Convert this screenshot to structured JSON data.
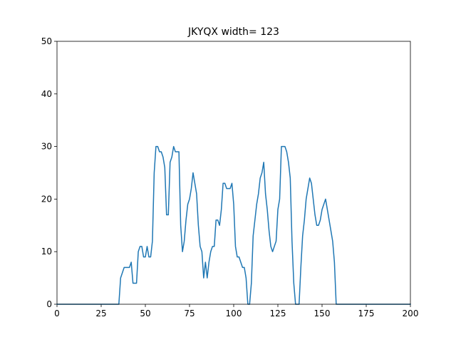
{
  "chart_data": {
    "type": "line",
    "title": "JKYQX width= 123",
    "xlabel": "",
    "ylabel": "",
    "xlim": [
      0,
      200
    ],
    "ylim": [
      0,
      50
    ],
    "xticks": [
      0,
      25,
      50,
      75,
      100,
      125,
      150,
      175,
      200
    ],
    "yticks": [
      0,
      10,
      20,
      30,
      40,
      50
    ],
    "grid": false,
    "line_color": "#1f77b4",
    "series": [
      {
        "x": [
          0,
          35,
          36,
          37,
          38,
          39,
          40,
          41,
          42,
          43,
          44,
          45,
          46,
          47,
          48,
          49,
          50,
          51,
          52,
          53,
          54,
          55,
          56,
          57,
          58,
          59,
          60,
          61,
          62,
          63,
          64,
          65,
          66,
          67,
          68,
          69,
          70,
          71,
          72,
          73,
          74,
          75,
          76,
          77,
          78,
          79,
          80,
          81,
          82,
          83,
          84,
          85,
          86,
          87,
          88,
          89,
          90,
          91,
          92,
          93,
          94,
          95,
          96,
          97,
          98,
          99,
          100,
          101,
          102,
          103,
          104,
          105,
          106,
          107,
          108,
          109,
          110,
          111,
          112,
          113,
          114,
          115,
          116,
          117,
          118,
          119,
          120,
          121,
          122,
          123,
          124,
          125,
          126,
          127,
          128,
          129,
          130,
          131,
          132,
          133,
          134,
          135,
          136,
          137,
          138,
          139,
          140,
          141,
          142,
          143,
          144,
          145,
          146,
          147,
          148,
          149,
          150,
          151,
          152,
          153,
          154,
          155,
          156,
          157,
          158,
          200
        ],
        "y": [
          0,
          0,
          5,
          6,
          7,
          7,
          7,
          7,
          8,
          4,
          4,
          4,
          10,
          11,
          11,
          9,
          9,
          11,
          9,
          9,
          12,
          25,
          30,
          30,
          29,
          29,
          28,
          26,
          17,
          17,
          27,
          28,
          30,
          29,
          29,
          29,
          15,
          10,
          12,
          16,
          19,
          20,
          22,
          25,
          23,
          21,
          15,
          11,
          10,
          5,
          8,
          5,
          8,
          10,
          11,
          11,
          16,
          16,
          15,
          18,
          23,
          23,
          22,
          22,
          22,
          23,
          19,
          11,
          9,
          9,
          8,
          7,
          7,
          5,
          0,
          0,
          4,
          13,
          16,
          19,
          21,
          24,
          25,
          27,
          21,
          18,
          14,
          11,
          10,
          11,
          12,
          18,
          20,
          30,
          30,
          30,
          29,
          27,
          24,
          12,
          4,
          0,
          0,
          0,
          7,
          13,
          16,
          20,
          22,
          24,
          23,
          20,
          17,
          15,
          15,
          16,
          18,
          19,
          20,
          18,
          16,
          14,
          12,
          8,
          0,
          0
        ]
      }
    ]
  }
}
